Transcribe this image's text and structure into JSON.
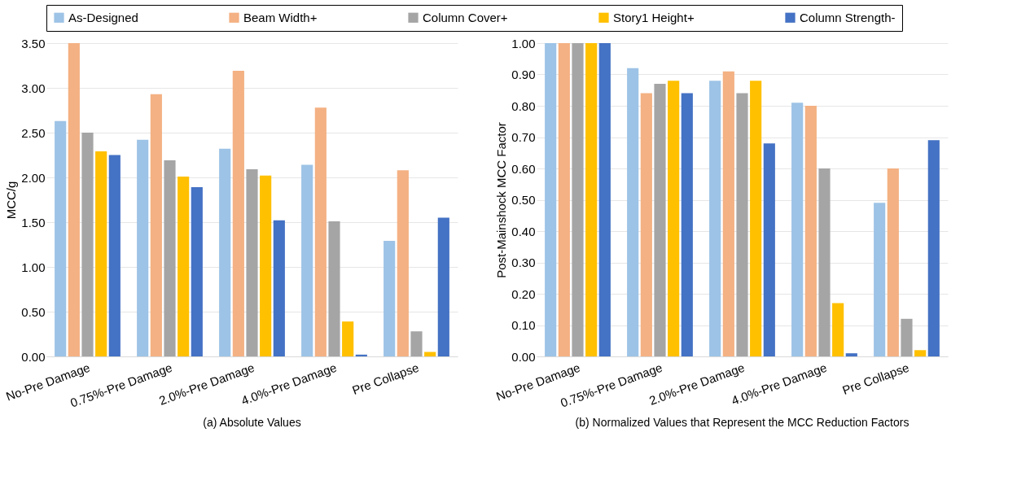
{
  "chart_data": [
    {
      "type": "bar",
      "title": "(a) Absolute Values",
      "ylabel": "MCC/g",
      "categories": [
        "No-Pre Damage",
        "0.75%-Pre Damage",
        "2.0%-Pre Damage",
        "4.0%-Pre Damage",
        "Pre Collapse"
      ],
      "ylim": [
        0,
        3.5
      ],
      "yticks": [
        {
          "value": 0,
          "label": "0.00"
        },
        {
          "value": 0.5,
          "label": "0.50"
        },
        {
          "value": 1,
          "label": "1.00"
        },
        {
          "value": 1.5,
          "label": "1.50"
        },
        {
          "value": 2,
          "label": "2.00"
        },
        {
          "value": 2.5,
          "label": "2.50"
        },
        {
          "value": 3,
          "label": "3.00"
        },
        {
          "value": 3.5,
          "label": "3.50"
        }
      ],
      "grid": "y",
      "legend": "top",
      "series": [
        {
          "name": "As-Designed",
          "color": "#9dc3e6",
          "values": [
            2.63,
            2.42,
            2.32,
            2.14,
            1.29
          ]
        },
        {
          "name": "Beam Width+",
          "color": "#f4b183",
          "values": [
            3.5,
            2.93,
            3.19,
            2.78,
            2.08
          ]
        },
        {
          "name": "Column Cover+",
          "color": "#a5a5a5",
          "values": [
            2.5,
            2.19,
            2.09,
            1.51,
            0.28
          ]
        },
        {
          "name": "Story1 Height+",
          "color": "#ffc000",
          "values": [
            2.29,
            2.01,
            2.02,
            0.39,
            0.05
          ]
        },
        {
          "name": "Column Strength-",
          "color": "#4472c4",
          "values": [
            2.25,
            1.89,
            1.52,
            0.02,
            1.55
          ]
        }
      ]
    },
    {
      "type": "bar",
      "title": "(b) Normalized Values that Represent the MCC Reduction Factors",
      "ylabel": "Post-Mainshock MCC Factor",
      "categories": [
        "No-Pre Damage",
        "0.75%-Pre Damage",
        "2.0%-Pre Damage",
        "4.0%-Pre Damage",
        "Pre Collapse"
      ],
      "ylim": [
        0,
        1
      ],
      "yticks": [
        {
          "value": 0,
          "label": "0.00"
        },
        {
          "value": 0.1,
          "label": "0.10"
        },
        {
          "value": 0.2,
          "label": "0.20"
        },
        {
          "value": 0.3,
          "label": "0.30"
        },
        {
          "value": 0.4,
          "label": "0.40"
        },
        {
          "value": 0.5,
          "label": "0.50"
        },
        {
          "value": 0.6,
          "label": "0.60"
        },
        {
          "value": 0.7,
          "label": "0.70"
        },
        {
          "value": 0.8,
          "label": "0.80"
        },
        {
          "value": 0.9,
          "label": "0.90"
        },
        {
          "value": 1,
          "label": "1.00"
        }
      ],
      "grid": "y",
      "legend": "top",
      "series": [
        {
          "name": "As-Designed",
          "color": "#9dc3e6",
          "values": [
            1,
            0.92,
            0.88,
            0.81,
            0.49
          ]
        },
        {
          "name": "Beam Width+",
          "color": "#f4b183",
          "values": [
            1,
            0.84,
            0.91,
            0.8,
            0.6
          ]
        },
        {
          "name": "Column Cover+",
          "color": "#a5a5a5",
          "values": [
            1,
            0.87,
            0.84,
            0.6,
            0.12
          ]
        },
        {
          "name": "Story1 Height+",
          "color": "#ffc000",
          "values": [
            1,
            0.88,
            0.88,
            0.17,
            0.02
          ]
        },
        {
          "name": "Column Strength-",
          "color": "#4472c4",
          "values": [
            1,
            0.84,
            0.68,
            0.01,
            0.69
          ]
        }
      ]
    }
  ]
}
